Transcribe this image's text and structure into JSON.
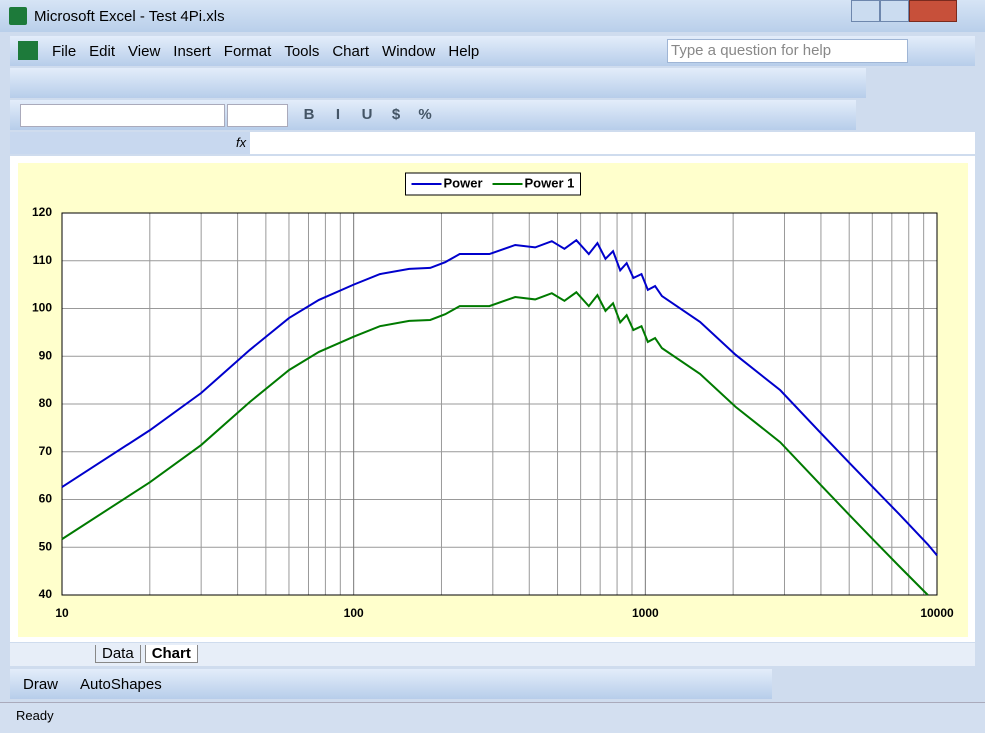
{
  "window": {
    "title": "Microsoft Excel - Test 4Pi.xls"
  },
  "menu": [
    "File",
    "Edit",
    "View",
    "Insert",
    "Format",
    "Tools",
    "Chart",
    "Window",
    "Help"
  ],
  "help_box": "Type a question for help",
  "format_buttons": [
    "B",
    "I",
    "U",
    "$",
    "%"
  ],
  "formula_bar": {
    "fx": "fx"
  },
  "chart_data": {
    "type": "line",
    "x": [
      10,
      20,
      30,
      44,
      60,
      76,
      100,
      123,
      155,
      183,
      206,
      231,
      292,
      358,
      419,
      478,
      528,
      580,
      640,
      685,
      730,
      775,
      820,
      863,
      910,
      970,
      1020,
      1080,
      1140,
      1540,
      2040,
      2900,
      3970,
      5000,
      6000,
      7400,
      9300,
      10000
    ],
    "series": [
      {
        "name": "Power",
        "color": "#0000cc",
        "values": [
          62.6,
          74.5,
          82.3,
          91.3,
          98,
          101.8,
          105,
          107.2,
          108.3,
          108.5,
          109.7,
          111.4,
          111.4,
          113.3,
          112.8,
          114.1,
          112.5,
          114.3,
          111.4,
          113.7,
          110.4,
          112,
          108,
          109.5,
          106.4,
          107.2,
          103.9,
          104.7,
          102.6,
          97.2,
          90.3,
          82.9,
          74.1,
          67.7,
          62.7,
          57,
          50.6,
          48.3
        ]
      },
      {
        "name": "Power 1",
        "color": "#007a00",
        "values": [
          51.7,
          63.6,
          71.4,
          80.4,
          87.1,
          90.9,
          94.1,
          96.3,
          97.4,
          97.6,
          98.8,
          100.5,
          100.5,
          102.4,
          101.9,
          103.2,
          101.6,
          103.4,
          100.5,
          102.8,
          99.5,
          101.1,
          97.1,
          98.6,
          95.5,
          96.3,
          93,
          93.8,
          91.7,
          86.3,
          79.4,
          72,
          63.2,
          56.8,
          51.8,
          46.1,
          40,
          null
        ]
      }
    ],
    "xlim": [
      10,
      10000
    ],
    "xticks": [
      10,
      100,
      1000,
      10000
    ],
    "log_x": true,
    "ylim": [
      40,
      120
    ],
    "yticks": [
      40,
      50,
      60,
      70,
      80,
      90,
      100,
      110,
      120
    ],
    "grid": true,
    "minor_grid": true,
    "legend": "top-center"
  },
  "sheet_tabs": [
    "Data",
    "Chart"
  ],
  "active_tab": 1,
  "draw_toolbar": [
    "Draw",
    "AutoShapes"
  ],
  "status": "Ready"
}
